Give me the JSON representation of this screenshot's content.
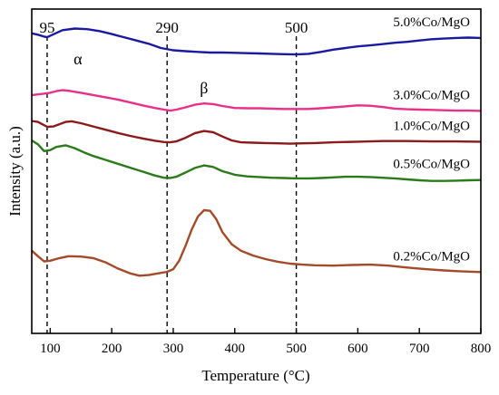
{
  "chart_data": {
    "type": "line",
    "title": "",
    "xlabel": "Temperature (°C)",
    "ylabel": "Intensity (a.u.)",
    "xlim": [
      70,
      800
    ],
    "ylim": [
      0,
      1
    ],
    "x_ticks": [
      100,
      200,
      300,
      400,
      500,
      600,
      700,
      800
    ],
    "x_tick_labels": [
      "100",
      "200",
      "300",
      "400",
      "500",
      "600",
      "700",
      "800"
    ],
    "y_ticks_shown": false,
    "grid": false,
    "legend": "inline labels at right of each curve",
    "reference_lines": [
      {
        "x": 95,
        "label": "95"
      },
      {
        "x": 290,
        "label": "290"
      },
      {
        "x": 500,
        "label": "500"
      }
    ],
    "annotations": [
      {
        "text": "α",
        "x": 145,
        "y": 0.83
      },
      {
        "text": "β",
        "x": 350,
        "y": 0.74
      }
    ],
    "series": [
      {
        "name": "5.0%Co/MgO",
        "color": "#1a1aa0",
        "points": [
          [
            70,
            0.925
          ],
          [
            80,
            0.921
          ],
          [
            90,
            0.915
          ],
          [
            95,
            0.913
          ],
          [
            105,
            0.922
          ],
          [
            120,
            0.935
          ],
          [
            140,
            0.94
          ],
          [
            160,
            0.938
          ],
          [
            180,
            0.932
          ],
          [
            200,
            0.923
          ],
          [
            220,
            0.913
          ],
          [
            240,
            0.903
          ],
          [
            260,
            0.893
          ],
          [
            280,
            0.88
          ],
          [
            300,
            0.873
          ],
          [
            320,
            0.87
          ],
          [
            340,
            0.868
          ],
          [
            360,
            0.866
          ],
          [
            380,
            0.866
          ],
          [
            400,
            0.865
          ],
          [
            420,
            0.864
          ],
          [
            440,
            0.863
          ],
          [
            460,
            0.862
          ],
          [
            480,
            0.861
          ],
          [
            500,
            0.86
          ],
          [
            520,
            0.862
          ],
          [
            540,
            0.868
          ],
          [
            560,
            0.875
          ],
          [
            580,
            0.88
          ],
          [
            600,
            0.885
          ],
          [
            620,
            0.888
          ],
          [
            640,
            0.892
          ],
          [
            660,
            0.896
          ],
          [
            680,
            0.899
          ],
          [
            700,
            0.903
          ],
          [
            720,
            0.907
          ],
          [
            740,
            0.909
          ],
          [
            760,
            0.911
          ],
          [
            780,
            0.912
          ],
          [
            800,
            0.911
          ]
        ]
      },
      {
        "name": "3.0%Co/MgO",
        "color": "#e8308a",
        "points": [
          [
            70,
            0.735
          ],
          [
            85,
            0.738
          ],
          [
            100,
            0.742
          ],
          [
            110,
            0.747
          ],
          [
            120,
            0.75
          ],
          [
            130,
            0.748
          ],
          [
            150,
            0.742
          ],
          [
            170,
            0.735
          ],
          [
            190,
            0.728
          ],
          [
            210,
            0.721
          ],
          [
            230,
            0.712
          ],
          [
            250,
            0.703
          ],
          [
            270,
            0.695
          ],
          [
            285,
            0.69
          ],
          [
            295,
            0.687
          ],
          [
            305,
            0.69
          ],
          [
            320,
            0.697
          ],
          [
            335,
            0.705
          ],
          [
            350,
            0.709
          ],
          [
            365,
            0.707
          ],
          [
            380,
            0.701
          ],
          [
            400,
            0.695
          ],
          [
            420,
            0.694
          ],
          [
            440,
            0.694
          ],
          [
            460,
            0.693
          ],
          [
            480,
            0.692
          ],
          [
            500,
            0.692
          ],
          [
            520,
            0.692
          ],
          [
            540,
            0.694
          ],
          [
            560,
            0.697
          ],
          [
            580,
            0.7
          ],
          [
            600,
            0.703
          ],
          [
            620,
            0.702
          ],
          [
            640,
            0.698
          ],
          [
            660,
            0.693
          ],
          [
            680,
            0.691
          ],
          [
            700,
            0.69
          ],
          [
            720,
            0.689
          ],
          [
            740,
            0.688
          ],
          [
            760,
            0.687
          ],
          [
            780,
            0.687
          ],
          [
            800,
            0.686
          ]
        ]
      },
      {
        "name": "1.0%Co/MgO",
        "color": "#8b1a1a",
        "points": [
          [
            70,
            0.655
          ],
          [
            80,
            0.652
          ],
          [
            95,
            0.637
          ],
          [
            105,
            0.638
          ],
          [
            115,
            0.645
          ],
          [
            125,
            0.652
          ],
          [
            135,
            0.654
          ],
          [
            150,
            0.648
          ],
          [
            170,
            0.638
          ],
          [
            190,
            0.628
          ],
          [
            210,
            0.618
          ],
          [
            230,
            0.609
          ],
          [
            250,
            0.601
          ],
          [
            270,
            0.594
          ],
          [
            285,
            0.59
          ],
          [
            295,
            0.589
          ],
          [
            305,
            0.592
          ],
          [
            320,
            0.603
          ],
          [
            335,
            0.617
          ],
          [
            350,
            0.624
          ],
          [
            365,
            0.62
          ],
          [
            380,
            0.607
          ],
          [
            395,
            0.595
          ],
          [
            410,
            0.589
          ],
          [
            430,
            0.588
          ],
          [
            450,
            0.587
          ],
          [
            470,
            0.586
          ],
          [
            490,
            0.585
          ],
          [
            510,
            0.586
          ],
          [
            530,
            0.587
          ],
          [
            560,
            0.589
          ],
          [
            600,
            0.591
          ],
          [
            640,
            0.593
          ],
          [
            680,
            0.593
          ],
          [
            720,
            0.592
          ],
          [
            760,
            0.592
          ],
          [
            800,
            0.591
          ]
        ]
      },
      {
        "name": "0.5%Co/MgO",
        "color": "#2a7a1a",
        "points": [
          [
            70,
            0.595
          ],
          [
            80,
            0.583
          ],
          [
            90,
            0.562
          ],
          [
            100,
            0.565
          ],
          [
            110,
            0.575
          ],
          [
            125,
            0.58
          ],
          [
            140,
            0.571
          ],
          [
            155,
            0.558
          ],
          [
            170,
            0.547
          ],
          [
            190,
            0.535
          ],
          [
            210,
            0.523
          ],
          [
            230,
            0.511
          ],
          [
            250,
            0.499
          ],
          [
            270,
            0.487
          ],
          [
            285,
            0.48
          ],
          [
            295,
            0.479
          ],
          [
            305,
            0.483
          ],
          [
            320,
            0.496
          ],
          [
            335,
            0.51
          ],
          [
            350,
            0.518
          ],
          [
            365,
            0.513
          ],
          [
            380,
            0.5
          ],
          [
            400,
            0.489
          ],
          [
            420,
            0.484
          ],
          [
            440,
            0.482
          ],
          [
            460,
            0.48
          ],
          [
            480,
            0.479
          ],
          [
            500,
            0.478
          ],
          [
            520,
            0.478
          ],
          [
            540,
            0.479
          ],
          [
            560,
            0.481
          ],
          [
            580,
            0.483
          ],
          [
            600,
            0.483
          ],
          [
            620,
            0.482
          ],
          [
            640,
            0.48
          ],
          [
            660,
            0.478
          ],
          [
            680,
            0.475
          ],
          [
            700,
            0.472
          ],
          [
            720,
            0.47
          ],
          [
            740,
            0.47
          ],
          [
            760,
            0.471
          ],
          [
            780,
            0.472
          ],
          [
            800,
            0.473
          ]
        ]
      },
      {
        "name": "0.2%Co/MgO",
        "color": "#a34a28",
        "points": [
          [
            70,
            0.255
          ],
          [
            80,
            0.238
          ],
          [
            90,
            0.222
          ],
          [
            100,
            0.224
          ],
          [
            115,
            0.232
          ],
          [
            130,
            0.238
          ],
          [
            150,
            0.237
          ],
          [
            170,
            0.232
          ],
          [
            190,
            0.219
          ],
          [
            210,
            0.2
          ],
          [
            230,
            0.185
          ],
          [
            245,
            0.178
          ],
          [
            260,
            0.18
          ],
          [
            275,
            0.185
          ],
          [
            290,
            0.19
          ],
          [
            300,
            0.198
          ],
          [
            310,
            0.225
          ],
          [
            320,
            0.27
          ],
          [
            330,
            0.32
          ],
          [
            340,
            0.36
          ],
          [
            350,
            0.38
          ],
          [
            360,
            0.378
          ],
          [
            370,
            0.352
          ],
          [
            380,
            0.312
          ],
          [
            395,
            0.275
          ],
          [
            410,
            0.255
          ],
          [
            430,
            0.24
          ],
          [
            450,
            0.229
          ],
          [
            470,
            0.221
          ],
          [
            490,
            0.215
          ],
          [
            510,
            0.212
          ],
          [
            530,
            0.21
          ],
          [
            560,
            0.209
          ],
          [
            590,
            0.211
          ],
          [
            620,
            0.212
          ],
          [
            650,
            0.209
          ],
          [
            680,
            0.203
          ],
          [
            710,
            0.198
          ],
          [
            740,
            0.194
          ],
          [
            770,
            0.191
          ],
          [
            800,
            0.189
          ]
        ]
      }
    ]
  }
}
